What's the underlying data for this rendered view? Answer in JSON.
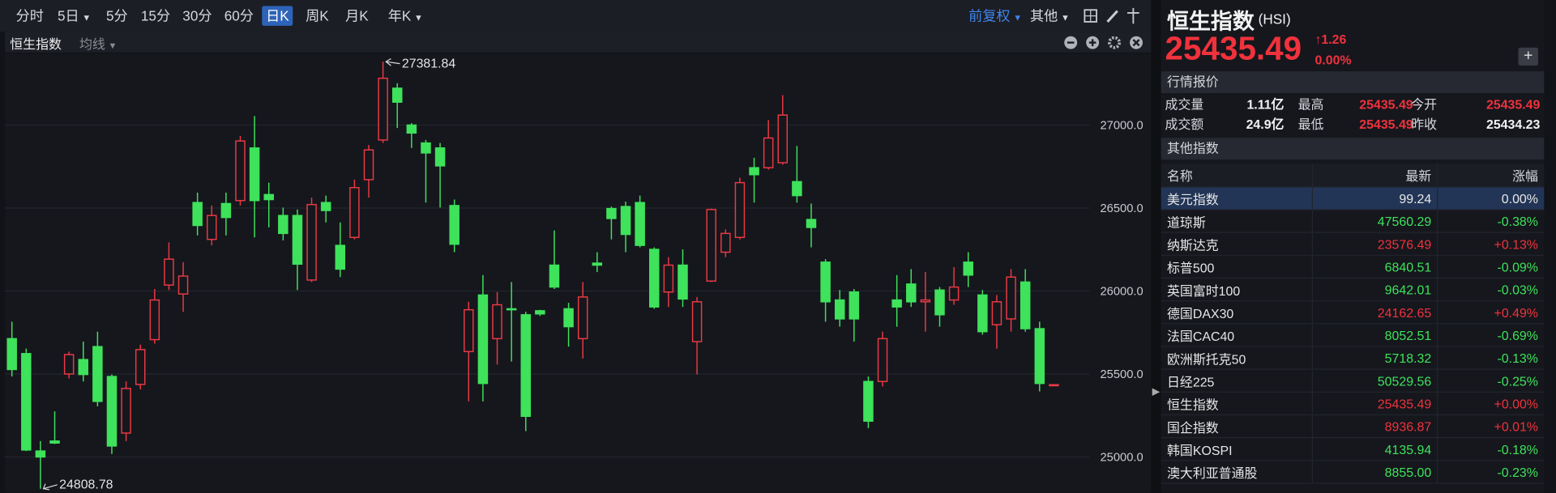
{
  "toolbar": {
    "periods": [
      "分时",
      "5日",
      "5分",
      "15分",
      "30分",
      "60分",
      "日K",
      "周K",
      "月K",
      "年K"
    ],
    "adjust": "前复权",
    "other": "其他"
  },
  "chart_header": {
    "name": "恒生指数",
    "ma": "均线"
  },
  "chart_data": {
    "type": "candlestick",
    "open": [
      25713,
      25623,
      25036,
      25096,
      25500,
      25587,
      25665,
      25485,
      25144,
      25437,
      25707,
      26036,
      25982,
      26533,
      26311,
      26527,
      26545,
      26862,
      26581,
      26455,
      26455,
      26066,
      26533,
      26275,
      26323,
      26671,
      26910,
      27222,
      27000,
      26892,
      26862,
      26515,
      25635,
      25976,
      25713,
      25893,
      25857,
      25881,
      26156,
      25893,
      25713,
      26168,
      26497,
      26509,
      26533,
      26251,
      25994,
      26156,
      25695,
      26060,
      26234,
      26323,
      26743,
      26743,
      26773,
      26659,
      26431,
      26174,
      25946,
      25994,
      25455,
      25455,
      25946,
      26042,
      25935,
      26006,
      25946,
      26174,
      25976,
      25797,
      25832,
      26054,
      25773,
      25435.49
    ],
    "high": [
      25815,
      25653,
      25096,
      25275,
      25635,
      25695,
      25755,
      25497,
      25455,
      25677,
      26012,
      26293,
      26174,
      26593,
      26515,
      26593,
      26934,
      27054,
      26653,
      26503,
      26491,
      26563,
      26575,
      26413,
      26671,
      26880,
      27381.84,
      27252,
      27012,
      26910,
      26892,
      26551,
      25935,
      26096,
      25994,
      26054,
      25875,
      25887,
      26365,
      25929,
      26054,
      26234,
      26509,
      26539,
      26575,
      26263,
      26204,
      26251,
      25964,
      26497,
      26371,
      26683,
      26803,
      27030,
      27180,
      26874,
      26527,
      26192,
      26006,
      26012,
      25485,
      25755,
      26096,
      26132,
      26114,
      26024,
      26144,
      26234,
      26006,
      25976,
      26132,
      26132,
      25815,
      25435.49
    ],
    "low": [
      25485,
      25036,
      24808.78,
      25078,
      25473,
      25455,
      25305,
      25018,
      25096,
      25407,
      25683,
      26006,
      25874,
      26335,
      26275,
      26335,
      26515,
      26323,
      26383,
      26305,
      26006,
      26054,
      26413,
      26084,
      26311,
      26563,
      26892,
      26982,
      26862,
      26533,
      26503,
      26234,
      25335,
      25335,
      25557,
      25575,
      25156,
      25850,
      26012,
      25665,
      25593,
      26114,
      26311,
      26234,
      26263,
      25893,
      25904,
      25904,
      25497,
      26054,
      26204,
      26311,
      26533,
      26731,
      26761,
      26533,
      26263,
      25815,
      25785,
      25695,
      25174,
      25425,
      25785,
      25904,
      25755,
      25785,
      25917,
      26024,
      25737,
      25653,
      25755,
      25755,
      25395,
      25435.49
    ],
    "close": [
      25527,
      25042,
      25000,
      25084,
      25617,
      25497,
      25335,
      25066,
      25413,
      25647,
      25946,
      26192,
      26090,
      26395,
      26455,
      26443,
      26904,
      26545,
      26551,
      26347,
      26162,
      26521,
      26485,
      26132,
      26623,
      26850,
      27282,
      27138,
      26952,
      26832,
      26754,
      26282,
      25887,
      25443,
      25917,
      25887,
      25245,
      25862,
      26024,
      25785,
      25964,
      26156,
      26437,
      26341,
      26275,
      25904,
      26156,
      25952,
      25935,
      26491,
      26347,
      26653,
      26701,
      26922,
      27060,
      26575,
      26383,
      25935,
      25832,
      25832,
      25216,
      25713,
      25904,
      25935,
      25946,
      25857,
      26024,
      26096,
      25755,
      25935,
      26084,
      25773,
      25443,
      25435.49
    ],
    "up_color": "#ea3943",
    "down_color": "#3fe25b",
    "ylim": [
      24785,
      27431
    ],
    "yticks": [
      {
        "value": 25000,
        "label": "25000.0"
      },
      {
        "value": 25500,
        "label": "25500.0"
      },
      {
        "value": 26000,
        "label": "26000.0"
      },
      {
        "value": 26500,
        "label": "26500.0"
      },
      {
        "value": 27000,
        "label": "27000.0"
      }
    ],
    "grid": true,
    "high_label": 27381.84,
    "low_label": 24808.78
  },
  "quote": {
    "name": "恒生指数",
    "code": "(HSI)",
    "price": "25435.49",
    "change": "1.26",
    "change_pct": "0.00%",
    "section_quote": "行情报价",
    "stats": [
      [
        "成交量",
        "1.11亿",
        "最高",
        "25435.49",
        "今开",
        "25435.49"
      ],
      [
        "成交额",
        "24.9亿",
        "最低",
        "25435.49",
        "昨收",
        "25434.23"
      ]
    ],
    "section_other": "其他指数"
  },
  "indices": {
    "columns": [
      "名称",
      "最新",
      "涨幅"
    ],
    "rows": [
      [
        "美元指数",
        "99.24",
        "0.00%"
      ],
      [
        "道琼斯",
        "47560.29",
        "-0.38%"
      ],
      [
        "纳斯达克",
        "23576.49",
        "+0.13%"
      ],
      [
        "标普500",
        "6840.51",
        "-0.09%"
      ],
      [
        "英国富时100",
        "9642.01",
        "-0.03%"
      ],
      [
        "德国DAX30",
        "24162.65",
        "+0.49%"
      ],
      [
        "法国CAC40",
        "8052.51",
        "-0.69%"
      ],
      [
        "欧洲斯托克50",
        "5718.32",
        "-0.13%"
      ],
      [
        "日经225",
        "50529.56",
        "-0.25%"
      ],
      [
        "恒生指数",
        "25435.49",
        "+0.00%"
      ],
      [
        "国企指数",
        "8936.87",
        "+0.01%"
      ],
      [
        "韩国KOSPI",
        "4135.94",
        "-0.18%"
      ],
      [
        "澳大利亚普通股",
        "8855.00",
        "-0.23%"
      ]
    ]
  }
}
